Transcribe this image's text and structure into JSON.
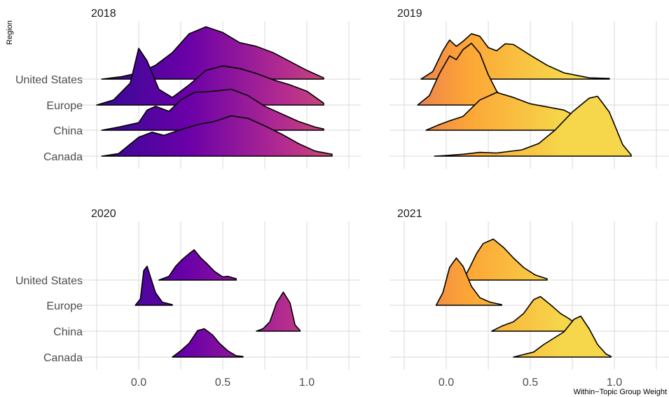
{
  "chart_data": {
    "type": "area",
    "subtype": "ridgeline",
    "xlabel": "Within−Topic Group Weight",
    "ylabel": "Region",
    "xlim": [
      -0.27,
      1.32
    ],
    "x_ticks": [
      0.0,
      0.5,
      1.0
    ],
    "x_tick_labels": [
      "0.0",
      "0.5",
      "1.0"
    ],
    "regions": [
      "United States",
      "Europe",
      "China",
      "Canada"
    ],
    "grid": true,
    "fill": "gradient by x, plasma palette",
    "colors": [
      "#2a0d8f",
      "#6a00a8",
      "#b12a90",
      "#e16462",
      "#fca636",
      "#f6d64a"
    ],
    "panels": [
      {
        "title": "2018",
        "series": [
          {
            "name": "United States",
            "density": [
              [
                -0.22,
                0
              ],
              [
                -0.1,
                0.04
              ],
              [
                0.0,
                0.1
              ],
              [
                0.1,
                0.22
              ],
              [
                0.2,
                0.42
              ],
              [
                0.3,
                0.72
              ],
              [
                0.4,
                0.83
              ],
              [
                0.5,
                0.74
              ],
              [
                0.6,
                0.58
              ],
              [
                0.7,
                0.52
              ],
              [
                0.8,
                0.42
              ],
              [
                0.9,
                0.28
              ],
              [
                1.0,
                0.14
              ],
              [
                1.1,
                0.02
              ]
            ]
          },
          {
            "name": "Europe",
            "density": [
              [
                -0.25,
                0
              ],
              [
                -0.15,
                0.08
              ],
              [
                -0.05,
                0.35
              ],
              [
                0.0,
                0.9
              ],
              [
                0.05,
                0.7
              ],
              [
                0.12,
                0.25
              ],
              [
                0.2,
                0.12
              ],
              [
                0.3,
                0.32
              ],
              [
                0.4,
                0.55
              ],
              [
                0.5,
                0.62
              ],
              [
                0.6,
                0.58
              ],
              [
                0.7,
                0.5
              ],
              [
                0.8,
                0.4
              ],
              [
                0.9,
                0.32
              ],
              [
                1.0,
                0.22
              ],
              [
                1.1,
                0.03
              ]
            ]
          },
          {
            "name": "China",
            "density": [
              [
                -0.22,
                0
              ],
              [
                -0.12,
                0.05
              ],
              [
                0.0,
                0.12
              ],
              [
                0.05,
                0.32
              ],
              [
                0.1,
                0.38
              ],
              [
                0.18,
                0.3
              ],
              [
                0.25,
                0.48
              ],
              [
                0.33,
                0.6
              ],
              [
                0.45,
                0.62
              ],
              [
                0.55,
                0.65
              ],
              [
                0.65,
                0.55
              ],
              [
                0.75,
                0.38
              ],
              [
                0.85,
                0.26
              ],
              [
                0.95,
                0.14
              ],
              [
                1.05,
                0.05
              ],
              [
                1.1,
                0.02
              ]
            ]
          },
          {
            "name": "Canada",
            "density": [
              [
                -0.22,
                0
              ],
              [
                -0.12,
                0.04
              ],
              [
                0.0,
                0.3
              ],
              [
                0.08,
                0.38
              ],
              [
                0.15,
                0.33
              ],
              [
                0.25,
                0.42
              ],
              [
                0.35,
                0.5
              ],
              [
                0.45,
                0.55
              ],
              [
                0.55,
                0.64
              ],
              [
                0.65,
                0.6
              ],
              [
                0.75,
                0.48
              ],
              [
                0.85,
                0.35
              ],
              [
                0.95,
                0.2
              ],
              [
                1.05,
                0.08
              ],
              [
                1.15,
                0.03
              ]
            ]
          }
        ]
      },
      {
        "title": "2019",
        "series": [
          {
            "name": "United States",
            "density": [
              [
                -0.15,
                0
              ],
              [
                -0.08,
                0.12
              ],
              [
                -0.02,
                0.45
              ],
              [
                0.02,
                0.62
              ],
              [
                0.06,
                0.52
              ],
              [
                0.1,
                0.6
              ],
              [
                0.15,
                0.72
              ],
              [
                0.2,
                0.68
              ],
              [
                0.25,
                0.5
              ],
              [
                0.3,
                0.45
              ],
              [
                0.35,
                0.56
              ],
              [
                0.4,
                0.55
              ],
              [
                0.5,
                0.38
              ],
              [
                0.6,
                0.22
              ],
              [
                0.7,
                0.1
              ],
              [
                0.85,
                0.02
              ],
              [
                0.97,
                0.01
              ]
            ]
          },
          {
            "name": "Europe",
            "density": [
              [
                -0.17,
                0
              ],
              [
                -0.1,
                0.15
              ],
              [
                -0.04,
                0.5
              ],
              [
                0.02,
                0.78
              ],
              [
                0.06,
                0.72
              ],
              [
                0.1,
                0.88
              ],
              [
                0.15,
                0.98
              ],
              [
                0.2,
                0.82
              ],
              [
                0.25,
                0.48
              ],
              [
                0.3,
                0.22
              ],
              [
                0.35,
                0.08
              ],
              [
                0.42,
                0.02
              ]
            ]
          },
          {
            "name": "China",
            "density": [
              [
                -0.12,
                0
              ],
              [
                -0.05,
                0.08
              ],
              [
                0.02,
                0.15
              ],
              [
                0.1,
                0.22
              ],
              [
                0.2,
                0.48
              ],
              [
                0.3,
                0.6
              ],
              [
                0.4,
                0.52
              ],
              [
                0.5,
                0.42
              ],
              [
                0.6,
                0.37
              ],
              [
                0.7,
                0.32
              ],
              [
                0.8,
                0.18
              ],
              [
                0.9,
                0.08
              ],
              [
                1.0,
                0.02
              ]
            ]
          },
          {
            "name": "Canada",
            "density": [
              [
                -0.07,
                0
              ],
              [
                0.0,
                0.01
              ],
              [
                0.1,
                0.03
              ],
              [
                0.2,
                0.06
              ],
              [
                0.3,
                0.05
              ],
              [
                0.45,
                0.1
              ],
              [
                0.55,
                0.2
              ],
              [
                0.65,
                0.42
              ],
              [
                0.75,
                0.7
              ],
              [
                0.85,
                0.92
              ],
              [
                0.9,
                0.95
              ],
              [
                0.97,
                0.7
              ],
              [
                1.05,
                0.18
              ],
              [
                1.1,
                0.02
              ]
            ]
          }
        ]
      },
      {
        "title": "2020",
        "series": [
          {
            "name": "United States",
            "density": [
              [
                0.12,
                0
              ],
              [
                0.18,
                0.06
              ],
              [
                0.22,
                0.22
              ],
              [
                0.26,
                0.33
              ],
              [
                0.3,
                0.42
              ],
              [
                0.33,
                0.48
              ],
              [
                0.37,
                0.35
              ],
              [
                0.41,
                0.25
              ],
              [
                0.45,
                0.14
              ],
              [
                0.5,
                0.05
              ],
              [
                0.53,
                0.06
              ],
              [
                0.58,
                0.02
              ]
            ]
          },
          {
            "name": "Europe",
            "density": [
              [
                -0.02,
                0
              ],
              [
                0.01,
                0.1
              ],
              [
                0.03,
                0.55
              ],
              [
                0.05,
                0.62
              ],
              [
                0.07,
                0.45
              ],
              [
                0.1,
                0.2
              ],
              [
                0.14,
                0.05
              ],
              [
                0.2,
                0.01
              ]
            ]
          },
          {
            "name": "China",
            "density": [
              [
                0.7,
                0
              ],
              [
                0.74,
                0.04
              ],
              [
                0.78,
                0.15
              ],
              [
                0.82,
                0.45
              ],
              [
                0.86,
                0.62
              ],
              [
                0.9,
                0.45
              ],
              [
                0.93,
                0.1
              ],
              [
                0.96,
                0.01
              ]
            ]
          },
          {
            "name": "Canada",
            "density": [
              [
                0.2,
                0
              ],
              [
                0.25,
                0.1
              ],
              [
                0.3,
                0.22
              ],
              [
                0.35,
                0.42
              ],
              [
                0.39,
                0.45
              ],
              [
                0.44,
                0.35
              ],
              [
                0.48,
                0.22
              ],
              [
                0.53,
                0.1
              ],
              [
                0.58,
                0.02
              ],
              [
                0.62,
                0.01
              ]
            ]
          }
        ]
      },
      {
        "title": "2021",
        "series": [
          {
            "name": "United States",
            "density": [
              [
                0.1,
                0
              ],
              [
                0.14,
                0.2
              ],
              [
                0.18,
                0.42
              ],
              [
                0.22,
                0.58
              ],
              [
                0.28,
                0.65
              ],
              [
                0.34,
                0.52
              ],
              [
                0.4,
                0.35
              ],
              [
                0.46,
                0.2
              ],
              [
                0.53,
                0.08
              ],
              [
                0.6,
                0.02
              ]
            ]
          },
          {
            "name": "Europe",
            "density": [
              [
                -0.06,
                0
              ],
              [
                -0.02,
                0.2
              ],
              [
                0.02,
                0.6
              ],
              [
                0.06,
                0.75
              ],
              [
                0.1,
                0.62
              ],
              [
                0.15,
                0.3
              ],
              [
                0.2,
                0.12
              ],
              [
                0.26,
                0.05
              ],
              [
                0.33,
                0.01
              ]
            ]
          },
          {
            "name": "China",
            "density": [
              [
                0.27,
                0
              ],
              [
                0.33,
                0.08
              ],
              [
                0.4,
                0.15
              ],
              [
                0.46,
                0.28
              ],
              [
                0.52,
                0.5
              ],
              [
                0.56,
                0.55
              ],
              [
                0.62,
                0.42
              ],
              [
                0.68,
                0.28
              ],
              [
                0.73,
                0.2
              ],
              [
                0.78,
                0.1
              ],
              [
                0.82,
                0.02
              ]
            ]
          },
          {
            "name": "Canada",
            "density": [
              [
                0.4,
                0
              ],
              [
                0.46,
                0.04
              ],
              [
                0.52,
                0.08
              ],
              [
                0.58,
                0.2
              ],
              [
                0.64,
                0.3
              ],
              [
                0.7,
                0.4
              ],
              [
                0.76,
                0.6
              ],
              [
                0.8,
                0.65
              ],
              [
                0.85,
                0.45
              ],
              [
                0.9,
                0.2
              ],
              [
                0.95,
                0.05
              ],
              [
                0.98,
                0.01
              ]
            ]
          }
        ]
      }
    ]
  }
}
